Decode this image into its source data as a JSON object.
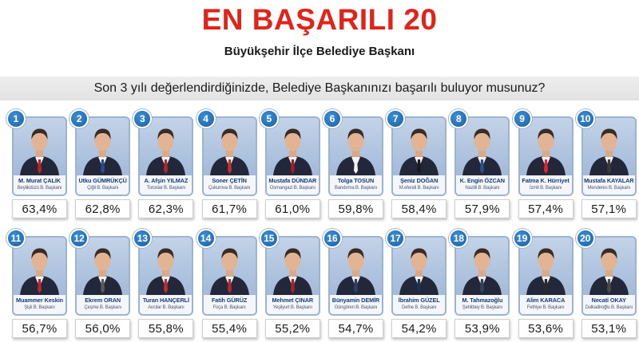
{
  "title": "EN BAŞARILI 20",
  "subtitle": "Büyükşehir İlçe Belediye Başkanı",
  "question": "Son 3 yılı değerlendirdiğinizde, Belediye Başkanınızı başarılı buluyor musunuz?",
  "colors": {
    "title": "#e2231a",
    "badge": "#1c5fa5",
    "name": "#173c79"
  },
  "mayors": [
    {
      "rank": "1",
      "name": "M. Murat ÇALIK",
      "title": "Beylikdüzü B. Başkanı",
      "percent": "63,4%",
      "tie": "#c01f2a"
    },
    {
      "rank": "2",
      "name": "Utku GÜMRÜKÇÜ",
      "title": "Çiğli B. Başkanı",
      "percent": "62,8%",
      "tie": "#2a4d8f"
    },
    {
      "rank": "3",
      "name": "A. Afşin YILMAZ",
      "title": "Toroslar B. Başkanı",
      "percent": "62,3%",
      "tie": "#b3262e"
    },
    {
      "rank": "4",
      "name": "Soner ÇETİN",
      "title": "Çukurova B. Başkanı",
      "percent": "61,7%",
      "tie": "#c62e2e"
    },
    {
      "rank": "5",
      "name": "Mustafa DÜNDAR",
      "title": "Osmangazi B. Başkanı",
      "percent": "61,0%",
      "tie": "#9e1f2a"
    },
    {
      "rank": "6",
      "name": "Tolga TOSUN",
      "title": "Bandırma B. Başkanı",
      "percent": "59,8%",
      "tie": "#f2f2f2"
    },
    {
      "rank": "7",
      "name": "Şeniz DOĞAN",
      "title": "M.efendi B. Başkanı",
      "percent": "58,4%",
      "tie": "#1a1a1a"
    },
    {
      "rank": "8",
      "name": "K. Engin ÖZCAN",
      "title": "Nazilli B. Başkanı",
      "percent": "57,9%",
      "tie": "#2b4f8c"
    },
    {
      "rank": "9",
      "name": "Fatma K. Hürriyet",
      "title": "İzmit B. Başkanı",
      "percent": "57,4%",
      "tie": "#d6282e"
    },
    {
      "rank": "10",
      "name": "Mustafa KAYALAR",
      "title": "Menderes B. Başkanı",
      "percent": "57,1%",
      "tie": "#3a3a3a"
    },
    {
      "rank": "11",
      "name": "Muammer Keskin",
      "title": "Şişli B. Başkanı",
      "percent": "56,7%",
      "tie": "#b8262e"
    },
    {
      "rank": "12",
      "name": "Ekrem ORAN",
      "title": "Çeşme B. Başkanı",
      "percent": "56,0%",
      "tie": "#5a5a5a"
    },
    {
      "rank": "13",
      "name": "Turan HANÇERLİ",
      "title": "Avcılar B. Başkanı",
      "percent": "55,8%",
      "tie": "#c32a30"
    },
    {
      "rank": "14",
      "name": "Fatih GÜRÜZ",
      "title": "Foça B. Başkanı",
      "percent": "55,4%",
      "tie": "#b62830"
    },
    {
      "rank": "15",
      "name": "Mehmet ÇINAR",
      "title": "Yeşilyurt B. Başkanı",
      "percent": "55,2%",
      "tie": "#a0242c"
    },
    {
      "rank": "16",
      "name": "Bünyamin DEMİR",
      "title": "Güngören B. Başkanı",
      "percent": "54,7%",
      "tie": "#2c3e66"
    },
    {
      "rank": "17",
      "name": "İbrahim GÜZEL",
      "title": "Defne B. Başkanı",
      "percent": "54,2%",
      "tie": "#1f2f55"
    },
    {
      "rank": "18",
      "name": "M. Tahmazoğlu",
      "title": "Şehitbey B. Başkanı",
      "percent": "53,9%",
      "tie": "#33415e"
    },
    {
      "rank": "19",
      "name": "Alim KARACA",
      "title": "Fethiye B. Başkanı",
      "percent": "53,6%",
      "tie": "#2a2a2a"
    },
    {
      "rank": "20",
      "name": "Necati OKAY",
      "title": "Dulkadiroğlu B. Başkanı",
      "percent": "53,1%",
      "tie": "#4a4a4a"
    }
  ]
}
